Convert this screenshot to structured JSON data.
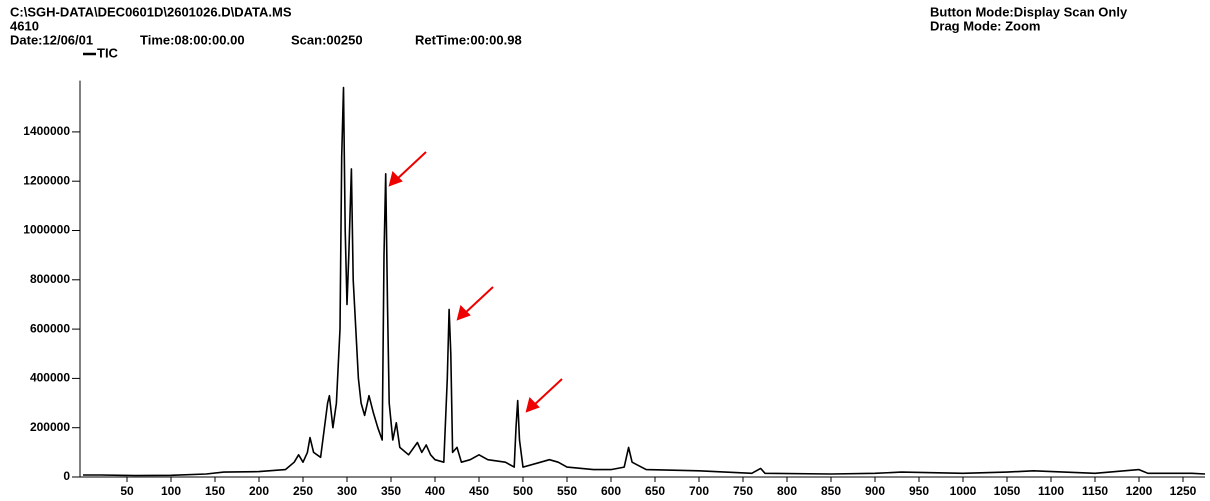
{
  "header": {
    "path": "C:\\SGH-DATA\\DEC0601D\\2601026.D\\DATA.MS",
    "sample": "4610",
    "date": "Date:12/06/01",
    "time": "Time:08:00:00.00",
    "scan": "Scan:00250",
    "ret_time": "RetTime:00:00.98",
    "button_mode": "Button Mode:Display Scan Only",
    "drag_mode": "Drag Mode:  Zoom"
  },
  "chart_data": {
    "type": "line",
    "x": [
      0,
      20,
      60,
      100,
      140,
      160,
      200,
      230,
      240,
      245,
      250,
      255,
      258,
      262,
      270,
      278,
      280,
      284,
      288,
      292,
      294,
      296,
      298,
      300,
      302,
      305,
      307,
      310,
      313,
      316,
      320,
      325,
      330,
      335,
      340,
      342,
      344,
      346,
      348,
      352,
      356,
      360,
      370,
      380,
      385,
      390,
      395,
      400,
      410,
      414,
      416,
      418,
      420,
      425,
      430,
      440,
      450,
      460,
      480,
      490,
      492,
      494,
      496,
      500,
      520,
      530,
      540,
      550,
      580,
      600,
      615,
      620,
      624,
      640,
      700,
      760,
      770,
      775,
      850,
      900,
      930,
      1000,
      1050,
      1080,
      1150,
      1200,
      1210,
      1260,
      1275
    ],
    "series": [
      {
        "name": "TIC",
        "color": "#000000",
        "values": [
          8000,
          8000,
          6000,
          7000,
          12000,
          20000,
          22000,
          30000,
          60000,
          90000,
          60000,
          100000,
          160000,
          100000,
          80000,
          300000,
          330000,
          200000,
          300000,
          600000,
          1300000,
          1580000,
          1000000,
          700000,
          900000,
          1250000,
          800000,
          600000,
          400000,
          300000,
          250000,
          330000,
          260000,
          200000,
          150000,
          900000,
          1230000,
          700000,
          300000,
          150000,
          220000,
          120000,
          90000,
          140000,
          100000,
          130000,
          90000,
          70000,
          60000,
          400000,
          680000,
          500000,
          100000,
          120000,
          60000,
          70000,
          90000,
          70000,
          60000,
          40000,
          200000,
          310000,
          150000,
          40000,
          60000,
          70000,
          60000,
          40000,
          30000,
          30000,
          40000,
          120000,
          60000,
          30000,
          25000,
          15000,
          35000,
          15000,
          12000,
          15000,
          20000,
          15000,
          20000,
          25000,
          15000,
          30000,
          15000,
          15000,
          12000
        ]
      }
    ],
    "xlim": [
      0,
      1275
    ],
    "xticks": [
      50,
      100,
      150,
      200,
      250,
      300,
      350,
      400,
      450,
      500,
      550,
      600,
      650,
      700,
      750,
      800,
      850,
      900,
      950,
      1000,
      1050,
      1100,
      1150,
      1200,
      1250
    ],
    "ylim": [
      0,
      1600000
    ],
    "yticks": [
      0,
      200000,
      400000,
      600000,
      800000,
      1000000,
      1200000,
      1400000
    ]
  }
}
